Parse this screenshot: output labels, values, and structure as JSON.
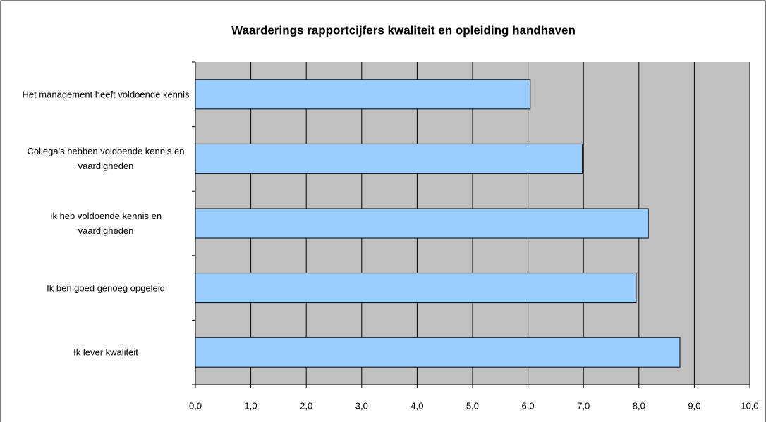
{
  "chart_data": {
    "type": "barh",
    "title": "Waarderings rapportcijfers kwaliteit en opleiding handhaven",
    "categories": [
      "Het management heeft voldoende kennis",
      "Collega's hebben voldoende kennis en vaardigheden",
      "Ik heb voldoende kennis en vaardigheden",
      "Ik ben goed genoeg opgeleid",
      "Ik lever kwaliteit"
    ],
    "values": [
      6.04,
      6.98,
      8.17,
      7.95,
      8.74
    ],
    "color": "#99ccff",
    "xlim": [
      0,
      10
    ],
    "xticks": [
      {
        "value": 0,
        "label": "0,0"
      },
      {
        "value": 1,
        "label": "1,0"
      },
      {
        "value": 2,
        "label": "2,0"
      },
      {
        "value": 3,
        "label": "3,0"
      },
      {
        "value": 4,
        "label": "4,0"
      },
      {
        "value": 5,
        "label": "5,0"
      },
      {
        "value": 6,
        "label": "6,0"
      },
      {
        "value": 7,
        "label": "7,0"
      },
      {
        "value": 8,
        "label": "8,0"
      },
      {
        "value": 9,
        "label": "9,0"
      },
      {
        "value": 10,
        "label": "10,0"
      }
    ],
    "grid": true
  }
}
